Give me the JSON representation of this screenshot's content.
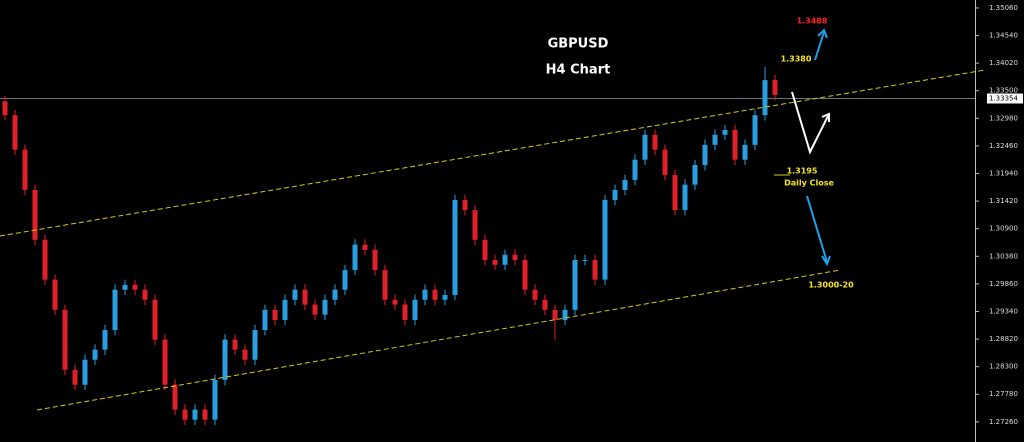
{
  "chart_data": {
    "type": "candlestick",
    "title": "GBPUSD",
    "subtitle": "H4 Chart",
    "up_color": "#2a9ee0",
    "down_color": "#e0202a",
    "ylim": [
      1.2688,
      1.3521
    ],
    "yticks": [
      {
        "value": 1.3506,
        "label": "1.35060"
      },
      {
        "value": 1.3454,
        "label": "1.34540"
      },
      {
        "value": 1.3402,
        "label": "1.34020"
      },
      {
        "value": 1.335,
        "label": "1.33500"
      },
      {
        "value": 1.3298,
        "label": "1.32980"
      },
      {
        "value": 1.3246,
        "label": "1.32460"
      },
      {
        "value": 1.3194,
        "label": "1.31940"
      },
      {
        "value": 1.3142,
        "label": "1.31420"
      },
      {
        "value": 1.309,
        "label": "1.30900"
      },
      {
        "value": 1.3038,
        "label": "1.30380"
      },
      {
        "value": 1.2986,
        "label": "1.29860"
      },
      {
        "value": 1.2934,
        "label": "1.29340"
      },
      {
        "value": 1.2882,
        "label": "1.28820"
      },
      {
        "value": 1.283,
        "label": "1.28300"
      },
      {
        "value": 1.2778,
        "label": "1.27780"
      },
      {
        "value": 1.2726,
        "label": "1.27260"
      }
    ],
    "current_price": 1.33354,
    "annotations": [
      "1.3488",
      "1.3380",
      "1.3195",
      "Daily Close",
      "1.3000-20"
    ],
    "open": [
      1.333,
      1.3304,
      1.3239,
      1.3163,
      1.3069,
      1.2994,
      1.2937,
      1.2824,
      1.2796,
      1.2843,
      1.2862,
      1.2899,
      1.2975,
      1.2984,
      1.2975,
      1.2956,
      1.2881,
      1.2796,
      1.2749,
      1.273,
      1.2749,
      1.273,
      1.2805,
      1.2881,
      1.2862,
      1.2843,
      1.2899,
      1.2937,
      1.2918,
      1.2956,
      1.2975,
      1.2947,
      1.2928,
      1.2956,
      1.2975,
      1.3012,
      1.306,
      1.305,
      1.3012,
      1.2956,
      1.2947,
      1.2918,
      1.2956,
      1.2975,
      1.2956,
      1.2965,
      1.3144,
      1.3125,
      1.3069,
      1.3031,
      1.3022,
      1.3041,
      1.3031,
      1.2975,
      1.2956,
      1.2937,
      1.2918,
      1.2937,
      1.3031,
      1.3031,
      1.2994,
      1.3144,
      1.3163,
      1.3182,
      1.322,
      1.3267,
      1.3239,
      1.3191,
      1.3125,
      1.3173,
      1.321,
      1.3248,
      1.3267,
      1.3276,
      1.322,
      1.3248,
      1.3304,
      1.337
    ],
    "high": [
      1.334,
      1.3314,
      1.3249,
      1.3173,
      1.3079,
      1.3004,
      1.2947,
      1.2834,
      1.2853,
      1.2872,
      1.2909,
      1.2985,
      1.2994,
      1.2994,
      1.2985,
      1.2966,
      1.2891,
      1.2806,
      1.2759,
      1.2759,
      1.2759,
      1.2815,
      1.2891,
      1.2891,
      1.2872,
      1.2909,
      1.2947,
      1.2947,
      1.2966,
      1.2985,
      1.2985,
      1.2957,
      1.2966,
      1.2985,
      1.3022,
      1.307,
      1.307,
      1.306,
      1.3022,
      1.2966,
      1.2957,
      1.2966,
      1.2985,
      1.2985,
      1.2975,
      1.3154,
      1.3154,
      1.3135,
      1.3079,
      1.3041,
      1.3051,
      1.3051,
      1.3041,
      1.2985,
      1.2966,
      1.2947,
      1.2947,
      1.3041,
      1.3041,
      1.3041,
      1.3154,
      1.3173,
      1.3192,
      1.323,
      1.3277,
      1.3277,
      1.3249,
      1.3201,
      1.3183,
      1.322,
      1.3258,
      1.3277,
      1.3286,
      1.3286,
      1.3258,
      1.3314,
      1.3395,
      1.338
    ],
    "low": [
      1.3294,
      1.3229,
      1.3153,
      1.3059,
      1.2984,
      1.2927,
      1.2814,
      1.2786,
      1.2786,
      1.2833,
      1.2852,
      1.2889,
      1.2965,
      1.2965,
      1.2946,
      1.2871,
      1.2786,
      1.2739,
      1.272,
      1.272,
      1.272,
      1.272,
      1.2795,
      1.2852,
      1.2833,
      1.2833,
      1.2889,
      1.2908,
      1.2908,
      1.2946,
      1.2937,
      1.2918,
      1.2918,
      1.2946,
      1.2965,
      1.3002,
      1.304,
      1.3002,
      1.2946,
      1.2937,
      1.2908,
      1.2908,
      1.2946,
      1.2946,
      1.2946,
      1.2955,
      1.3115,
      1.3059,
      1.3021,
      1.3012,
      1.3012,
      1.3021,
      1.2965,
      1.2946,
      1.2927,
      1.288,
      1.2908,
      1.2927,
      1.3021,
      1.2984,
      1.2984,
      1.3134,
      1.3153,
      1.3172,
      1.321,
      1.3229,
      1.3181,
      1.3115,
      1.3115,
      1.3163,
      1.32,
      1.3238,
      1.3257,
      1.321,
      1.321,
      1.3238,
      1.3294,
      1.3332
    ],
    "close": [
      1.3304,
      1.3239,
      1.3163,
      1.3069,
      1.2994,
      1.2937,
      1.2824,
      1.2796,
      1.2843,
      1.2862,
      1.2899,
      1.2975,
      1.2984,
      1.2975,
      1.2956,
      1.2881,
      1.2796,
      1.2749,
      1.273,
      1.2749,
      1.273,
      1.2805,
      1.2881,
      1.2862,
      1.2843,
      1.2899,
      1.2937,
      1.2918,
      1.2956,
      1.2975,
      1.2947,
      1.2928,
      1.2956,
      1.2975,
      1.3012,
      1.306,
      1.305,
      1.3012,
      1.2956,
      1.2947,
      1.2918,
      1.2956,
      1.2975,
      1.2956,
      1.2965,
      1.3144,
      1.3125,
      1.3069,
      1.3031,
      1.3022,
      1.3041,
      1.3031,
      1.2975,
      1.2956,
      1.2937,
      1.2918,
      1.2937,
      1.3031,
      1.3031,
      1.2994,
      1.3144,
      1.3163,
      1.3182,
      1.322,
      1.3267,
      1.3239,
      1.3191,
      1.3125,
      1.3173,
      1.321,
      1.3248,
      1.3267,
      1.3276,
      1.322,
      1.3248,
      1.3304,
      1.337,
      1.3342
    ]
  }
}
